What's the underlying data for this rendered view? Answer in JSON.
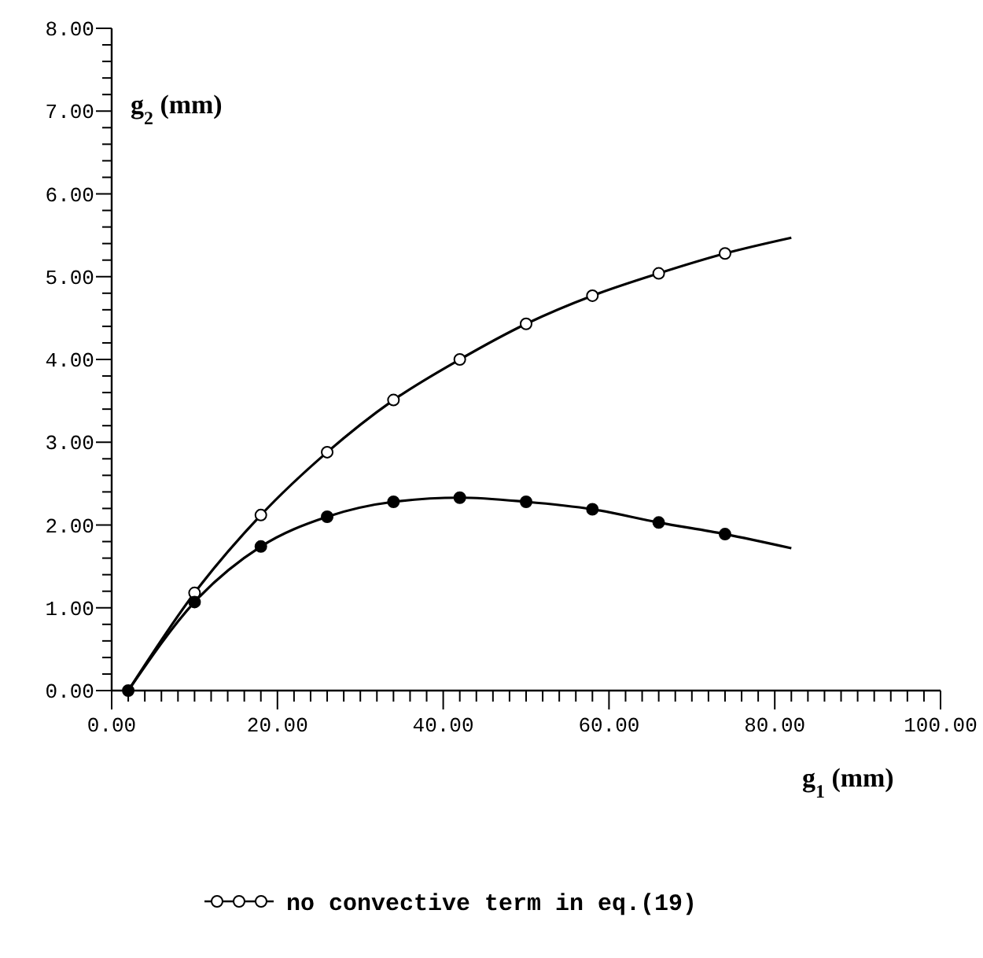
{
  "chart_data": {
    "type": "line",
    "xlabel": "g$_{1}$ (mm)",
    "ylabel": "g$_{2}$ (mm)",
    "xlim": [
      0,
      100
    ],
    "ylim": [
      0,
      8
    ],
    "xticks": [
      {
        "value": 0,
        "label": "0.00"
      },
      {
        "value": 2,
        "label": null
      },
      {
        "value": 4,
        "label": null
      },
      {
        "value": 6,
        "label": null
      },
      {
        "value": 8,
        "label": null
      },
      {
        "value": 10,
        "label": null
      },
      {
        "value": 12,
        "label": null
      },
      {
        "value": 14,
        "label": null
      },
      {
        "value": 16,
        "label": null
      },
      {
        "value": 18,
        "label": null
      },
      {
        "value": 20,
        "label": "20.00"
      },
      {
        "value": 22,
        "label": null
      },
      {
        "value": 24,
        "label": null
      },
      {
        "value": 26,
        "label": null
      },
      {
        "value": 28,
        "label": null
      },
      {
        "value": 30,
        "label": null
      },
      {
        "value": 32,
        "label": null
      },
      {
        "value": 34,
        "label": null
      },
      {
        "value": 36,
        "label": null
      },
      {
        "value": 38,
        "label": null
      },
      {
        "value": 40,
        "label": "40.00"
      },
      {
        "value": 42,
        "label": null
      },
      {
        "value": 44,
        "label": null
      },
      {
        "value": 46,
        "label": null
      },
      {
        "value": 48,
        "label": null
      },
      {
        "value": 50,
        "label": null
      },
      {
        "value": 52,
        "label": null
      },
      {
        "value": 54,
        "label": null
      },
      {
        "value": 56,
        "label": null
      },
      {
        "value": 58,
        "label": null
      },
      {
        "value": 60,
        "label": "60.00"
      },
      {
        "value": 62,
        "label": null
      },
      {
        "value": 64,
        "label": null
      },
      {
        "value": 66,
        "label": null
      },
      {
        "value": 68,
        "label": null
      },
      {
        "value": 70,
        "label": null
      },
      {
        "value": 72,
        "label": null
      },
      {
        "value": 74,
        "label": null
      },
      {
        "value": 76,
        "label": null
      },
      {
        "value": 78,
        "label": null
      },
      {
        "value": 80,
        "label": "80.00"
      },
      {
        "value": 82,
        "label": null
      },
      {
        "value": 84,
        "label": null
      },
      {
        "value": 86,
        "label": null
      },
      {
        "value": 88,
        "label": null
      },
      {
        "value": 90,
        "label": null
      },
      {
        "value": 92,
        "label": null
      },
      {
        "value": 94,
        "label": null
      },
      {
        "value": 96,
        "label": null
      },
      {
        "value": 98,
        "label": null
      },
      {
        "value": 100,
        "label": "100.00"
      }
    ],
    "yticks": [
      {
        "value": 0,
        "label": "0.00"
      },
      {
        "value": 0.2,
        "label": null
      },
      {
        "value": 0.4,
        "label": null
      },
      {
        "value": 0.6,
        "label": null
      },
      {
        "value": 0.8,
        "label": null
      },
      {
        "value": 1,
        "label": "1.00"
      },
      {
        "value": 1.2,
        "label": null
      },
      {
        "value": 1.4,
        "label": null
      },
      {
        "value": 1.6,
        "label": null
      },
      {
        "value": 1.8,
        "label": null
      },
      {
        "value": 2,
        "label": "2.00"
      },
      {
        "value": 2.2,
        "label": null
      },
      {
        "value": 2.4,
        "label": null
      },
      {
        "value": 2.6,
        "label": null
      },
      {
        "value": 2.8,
        "label": null
      },
      {
        "value": 3,
        "label": "3.00"
      },
      {
        "value": 3.2,
        "label": null
      },
      {
        "value": 3.4,
        "label": null
      },
      {
        "value": 3.6,
        "label": null
      },
      {
        "value": 3.8,
        "label": null
      },
      {
        "value": 4,
        "label": "4.00"
      },
      {
        "value": 4.2,
        "label": null
      },
      {
        "value": 4.4,
        "label": null
      },
      {
        "value": 4.6,
        "label": null
      },
      {
        "value": 4.8,
        "label": null
      },
      {
        "value": 5,
        "label": "5.00"
      },
      {
        "value": 5.2,
        "label": null
      },
      {
        "value": 5.4,
        "label": null
      },
      {
        "value": 5.6,
        "label": null
      },
      {
        "value": 5.8,
        "label": null
      },
      {
        "value": 6,
        "label": "6.00"
      },
      {
        "value": 6.2,
        "label": null
      },
      {
        "value": 6.4,
        "label": null
      },
      {
        "value": 6.6,
        "label": null
      },
      {
        "value": 6.8,
        "label": null
      },
      {
        "value": 7,
        "label": "7.00"
      },
      {
        "value": 7.2,
        "label": null
      },
      {
        "value": 7.4,
        "label": null
      },
      {
        "value": 7.6,
        "label": null
      },
      {
        "value": 7.8,
        "label": null
      },
      {
        "value": 8,
        "label": "8.00"
      }
    ],
    "legend": "bottom",
    "series": [
      {
        "color": "#000000",
        "marker": "none",
        "x": [
          2,
          10,
          18,
          26,
          34,
          42,
          50,
          58,
          66,
          74,
          82
        ],
        "values": [
          0,
          1.18,
          2.12,
          2.88,
          3.51,
          4.0,
          4.43,
          4.77,
          5.04,
          5.28,
          5.47
        ]
      },
      {
        "color": "#000000",
        "marker": "none",
        "x": [
          2,
          10,
          18,
          26,
          34,
          42,
          50,
          58,
          66,
          74,
          82
        ],
        "values": [
          0,
          1.07,
          1.74,
          2.1,
          2.28,
          2.33,
          2.28,
          2.19,
          2.03,
          1.89,
          1.72
        ]
      },
      {
        "type": "scatter",
        "name": "no convective term in eq.(19)",
        "color": "#ffffff",
        "marker": "circle",
        "x": [
          10,
          18,
          26,
          34,
          42,
          50,
          58,
          66,
          74
        ],
        "values": [
          1.18,
          2.12,
          2.88,
          3.51,
          4.0,
          4.43,
          4.77,
          5.04,
          5.28
        ]
      },
      {
        "type": "scatter",
        "color": "#000000",
        "marker": "circle",
        "x": [
          2,
          10,
          18,
          26,
          34,
          42,
          50,
          58,
          66,
          74
        ],
        "values": [
          0,
          1.07,
          1.74,
          2.1,
          2.28,
          2.33,
          2.28,
          2.19,
          2.03,
          1.89
        ]
      }
    ]
  }
}
